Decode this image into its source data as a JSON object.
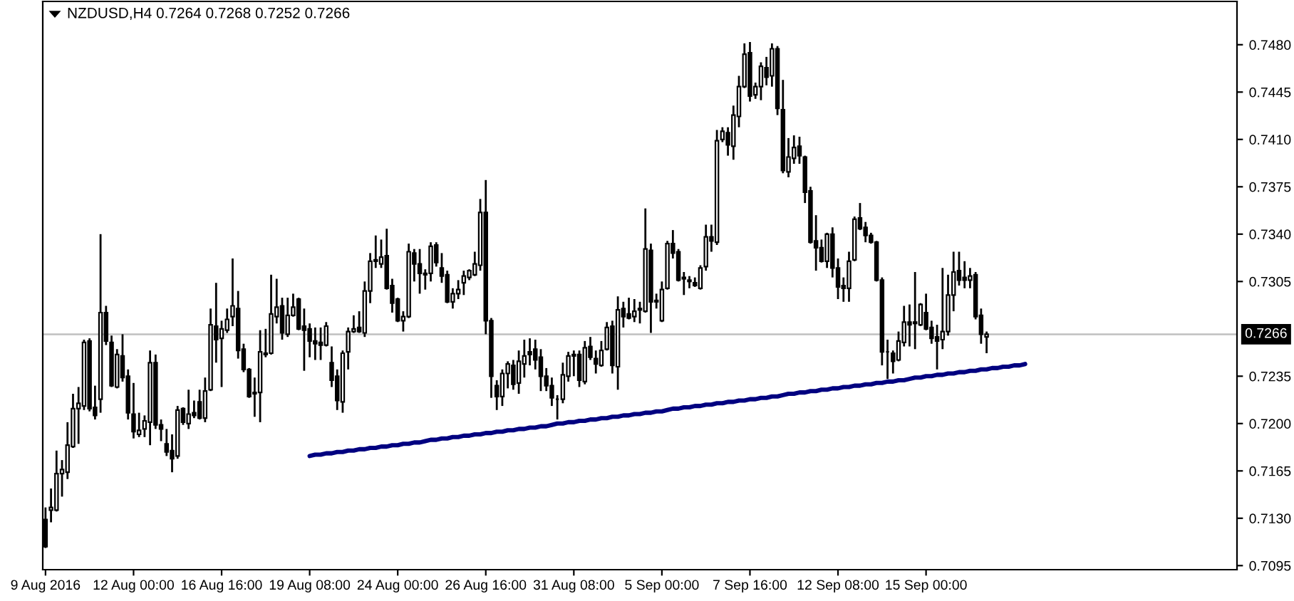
{
  "chart_data": {
    "type": "candlestick",
    "title": "NZDUSD,H4 0.7264 0.7268 0.7252 0.7266",
    "color": "#000000",
    "categories": [
      "9 Aug 2016",
      null,
      null,
      null,
      null,
      null,
      null,
      null,
      null,
      null,
      null,
      null,
      null,
      null,
      null,
      null,
      "12 Aug 00:00",
      null,
      null,
      null,
      null,
      null,
      null,
      null,
      null,
      null,
      null,
      null,
      null,
      null,
      null,
      null,
      "16 Aug 16:00",
      null,
      null,
      null,
      null,
      null,
      null,
      null,
      null,
      null,
      null,
      null,
      null,
      null,
      null,
      null,
      "19 Aug 08:00",
      null,
      null,
      null,
      null,
      null,
      null,
      null,
      null,
      null,
      null,
      null,
      null,
      null,
      null,
      null,
      "24 Aug 00:00",
      null,
      null,
      null,
      null,
      null,
      null,
      null,
      null,
      null,
      null,
      null,
      null,
      null,
      null,
      null,
      "26 Aug 16:00",
      null,
      null,
      null,
      null,
      null,
      null,
      null,
      null,
      null,
      null,
      null,
      null,
      null,
      null,
      null,
      "31 Aug 08:00",
      null,
      null,
      null,
      null,
      null,
      null,
      null,
      null,
      null,
      null,
      null,
      null,
      null,
      null,
      null,
      "5 Sep 00:00",
      null,
      null,
      null,
      null,
      null,
      null,
      null,
      null,
      null,
      null,
      null,
      null,
      null,
      null,
      null,
      "7 Sep 16:00",
      null,
      null,
      null,
      null,
      null,
      null,
      null,
      null,
      null,
      null,
      null,
      null,
      null,
      null,
      null,
      "12 Sep 08:00",
      null,
      null,
      null,
      null,
      null,
      null,
      null,
      null,
      null,
      null,
      null,
      null,
      null,
      null,
      null,
      "15 Sep 00:00",
      null,
      null,
      null,
      null,
      null,
      null,
      null,
      null,
      null,
      null,
      null,
      null,
      null,
      null,
      null,
      null,
      null,
      null,
      null,
      null,
      null,
      null,
      null,
      null,
      null,
      null,
      null,
      null,
      null,
      null,
      null,
      null,
      null,
      null,
      null,
      null,
      null,
      null,
      null,
      null,
      null,
      null,
      null,
      null,
      null,
      null,
      null,
      null,
      null,
      null,
      null,
      null,
      null,
      null,
      null,
      null
    ],
    "ohlc": [
      [
        0.7129,
        0.7138,
        0.7108,
        0.7109
      ],
      [
        0.7136,
        0.7152,
        0.7127,
        0.7138
      ],
      [
        0.7136,
        0.718,
        0.7135,
        0.7163
      ],
      [
        0.7163,
        0.7173,
        0.7146,
        0.7166
      ],
      [
        0.7164,
        0.7201,
        0.7159,
        0.7184
      ],
      [
        0.7183,
        0.7222,
        0.7182,
        0.7211
      ],
      [
        0.7211,
        0.7227,
        0.7185,
        0.7215
      ],
      [
        0.7213,
        0.7262,
        0.721,
        0.726
      ],
      [
        0.7261,
        0.7263,
        0.7209,
        0.7211
      ],
      [
        0.7212,
        0.7228,
        0.7203,
        0.7206
      ],
      [
        0.7218,
        0.734,
        0.7208,
        0.7282
      ],
      [
        0.7282,
        0.7287,
        0.7258,
        0.7261
      ],
      [
        0.726,
        0.7265,
        0.7227,
        0.7228
      ],
      [
        0.7227,
        0.7255,
        0.7226,
        0.7251
      ],
      [
        0.725,
        0.7266,
        0.7231,
        0.7234
      ],
      [
        0.7235,
        0.724,
        0.7203,
        0.7208
      ],
      [
        0.7207,
        0.723,
        0.7189,
        0.7194
      ],
      [
        0.7192,
        0.7208,
        0.719,
        0.7195
      ],
      [
        0.7196,
        0.7206,
        0.719,
        0.7202
      ],
      [
        0.7201,
        0.7254,
        0.7184,
        0.7245
      ],
      [
        0.7245,
        0.7251,
        0.7196,
        0.7199
      ],
      [
        0.7199,
        0.7203,
        0.7187,
        0.7196
      ],
      [
        0.7185,
        0.7196,
        0.7176,
        0.7179
      ],
      [
        0.718,
        0.7192,
        0.7164,
        0.7174
      ],
      [
        0.7176,
        0.7213,
        0.7174,
        0.721
      ],
      [
        0.7211,
        0.7212,
        0.7199,
        0.7201
      ],
      [
        0.72,
        0.7225,
        0.7196,
        0.7207
      ],
      [
        0.7208,
        0.7217,
        0.7204,
        0.7206
      ],
      [
        0.7216,
        0.7225,
        0.7203,
        0.7204
      ],
      [
        0.7204,
        0.7234,
        0.7201,
        0.7224
      ],
      [
        0.7225,
        0.7285,
        0.7224,
        0.7273
      ],
      [
        0.7272,
        0.7304,
        0.7245,
        0.7262
      ],
      [
        0.7263,
        0.7276,
        0.7227,
        0.727
      ],
      [
        0.7269,
        0.7285,
        0.7267,
        0.7277
      ],
      [
        0.7279,
        0.7322,
        0.7272,
        0.7287
      ],
      [
        0.7285,
        0.7298,
        0.7248,
        0.7254
      ],
      [
        0.7255,
        0.7259,
        0.7238,
        0.724
      ],
      [
        0.724,
        0.7241,
        0.7219,
        0.722
      ],
      [
        0.7222,
        0.7234,
        0.7205,
        0.7223
      ],
      [
        0.7223,
        0.7269,
        0.7201,
        0.7253
      ],
      [
        0.7251,
        0.727,
        0.7249,
        0.7252
      ],
      [
        0.7252,
        0.731,
        0.7251,
        0.7281
      ],
      [
        0.7279,
        0.7307,
        0.7274,
        0.7286
      ],
      [
        0.7287,
        0.7293,
        0.7262,
        0.7267
      ],
      [
        0.7266,
        0.7293,
        0.7264,
        0.728
      ],
      [
        0.728,
        0.7296,
        0.7279,
        0.7286
      ],
      [
        0.7292,
        0.7293,
        0.7269,
        0.727
      ],
      [
        0.7272,
        0.7285,
        0.7239,
        0.7269
      ],
      [
        0.727,
        0.7274,
        0.7249,
        0.7261
      ],
      [
        0.7261,
        0.7271,
        0.7247,
        0.7259
      ],
      [
        0.726,
        0.7271,
        0.7247,
        0.7258
      ],
      [
        0.7258,
        0.7275,
        0.7257,
        0.7272
      ],
      [
        0.7245,
        0.7257,
        0.7227,
        0.7232
      ],
      [
        0.7235,
        0.724,
        0.721,
        0.7217
      ],
      [
        0.7216,
        0.7254,
        0.7208,
        0.7252
      ],
      [
        0.7253,
        0.7271,
        0.724,
        0.7268
      ],
      [
        0.7268,
        0.728,
        0.7267,
        0.727
      ],
      [
        0.7271,
        0.7283,
        0.7267,
        0.7268
      ],
      [
        0.7267,
        0.7305,
        0.7264,
        0.7298
      ],
      [
        0.7298,
        0.7326,
        0.7289,
        0.732
      ],
      [
        0.7321,
        0.7339,
        0.7315,
        0.732
      ],
      [
        0.7318,
        0.7336,
        0.7315,
        0.7323
      ],
      [
        0.7324,
        0.7344,
        0.7299,
        0.73
      ],
      [
        0.7302,
        0.7307,
        0.7282,
        0.7289
      ],
      [
        0.7292,
        0.7293,
        0.7275,
        0.7276
      ],
      [
        0.7276,
        0.7283,
        0.7268,
        0.7279
      ],
      [
        0.7279,
        0.7333,
        0.7278,
        0.7327
      ],
      [
        0.7326,
        0.7329,
        0.7305,
        0.7318
      ],
      [
        0.7318,
        0.7329,
        0.7296,
        0.7311
      ],
      [
        0.7311,
        0.7314,
        0.7299,
        0.731
      ],
      [
        0.7311,
        0.7334,
        0.7305,
        0.7331
      ],
      [
        0.7332,
        0.7334,
        0.7316,
        0.7319
      ],
      [
        0.7315,
        0.7326,
        0.7304,
        0.7309
      ],
      [
        0.731,
        0.7313,
        0.7289,
        0.729
      ],
      [
        0.729,
        0.73,
        0.7285,
        0.7296
      ],
      [
        0.7296,
        0.7306,
        0.7292,
        0.7299
      ],
      [
        0.7304,
        0.7313,
        0.7295,
        0.7309
      ],
      [
        0.7308,
        0.7314,
        0.7306,
        0.7313
      ],
      [
        0.731,
        0.7327,
        0.7309,
        0.7318
      ],
      [
        0.7317,
        0.7366,
        0.7313,
        0.7356
      ],
      [
        0.7356,
        0.738,
        0.7266,
        0.7276
      ],
      [
        0.7276,
        0.7278,
        0.7219,
        0.7235
      ],
      [
        0.7228,
        0.7232,
        0.721,
        0.722
      ],
      [
        0.722,
        0.724,
        0.7213,
        0.7237
      ],
      [
        0.7237,
        0.7246,
        0.7226,
        0.7244
      ],
      [
        0.7243,
        0.7247,
        0.7225,
        0.7229
      ],
      [
        0.723,
        0.7254,
        0.7222,
        0.7246
      ],
      [
        0.7244,
        0.7262,
        0.7234,
        0.725
      ],
      [
        0.7253,
        0.7263,
        0.7243,
        0.7251
      ],
      [
        0.7255,
        0.7262,
        0.724,
        0.7247
      ],
      [
        0.7249,
        0.7255,
        0.7224,
        0.7235
      ],
      [
        0.7235,
        0.7241,
        0.7224,
        0.7228
      ],
      [
        0.7228,
        0.7234,
        0.7213,
        0.7219
      ],
      [
        0.7218,
        0.7221,
        0.7203,
        0.7218
      ],
      [
        0.7218,
        0.7245,
        0.7215,
        0.7236
      ],
      [
        0.7235,
        0.7253,
        0.7231,
        0.725
      ],
      [
        0.725,
        0.7254,
        0.7235,
        0.7251
      ],
      [
        0.7251,
        0.7254,
        0.7227,
        0.7232
      ],
      [
        0.7231,
        0.7261,
        0.7229,
        0.7256
      ],
      [
        0.7257,
        0.7264,
        0.7247,
        0.7249
      ],
      [
        0.7248,
        0.7254,
        0.7237,
        0.7244
      ],
      [
        0.7243,
        0.7261,
        0.7242,
        0.7254
      ],
      [
        0.7255,
        0.7275,
        0.7254,
        0.7271
      ],
      [
        0.7272,
        0.7276,
        0.7237,
        0.7243
      ],
      [
        0.7242,
        0.7294,
        0.7225,
        0.7284
      ],
      [
        0.7285,
        0.729,
        0.7271,
        0.7279
      ],
      [
        0.7281,
        0.7293,
        0.7277,
        0.7278
      ],
      [
        0.7279,
        0.7292,
        0.7275,
        0.7283
      ],
      [
        0.7284,
        0.729,
        0.7274,
        0.7285
      ],
      [
        0.7283,
        0.7359,
        0.7282,
        0.7329
      ],
      [
        0.7328,
        0.7333,
        0.7267,
        0.729
      ],
      [
        0.7291,
        0.7296,
        0.7285,
        0.729
      ],
      [
        0.7276,
        0.7305,
        0.7275,
        0.7299
      ],
      [
        0.73,
        0.7335,
        0.7299,
        0.7333
      ],
      [
        0.7333,
        0.7343,
        0.7322,
        0.7326
      ],
      [
        0.7327,
        0.7329,
        0.7305,
        0.7306
      ],
      [
        0.7308,
        0.7312,
        0.7295,
        0.7307
      ],
      [
        0.7306,
        0.7309,
        0.73,
        0.7305
      ],
      [
        0.7304,
        0.7308,
        0.7301,
        0.7302
      ],
      [
        0.73,
        0.7317,
        0.7299,
        0.7315
      ],
      [
        0.7316,
        0.7347,
        0.7313,
        0.7338
      ],
      [
        0.7338,
        0.7347,
        0.7327,
        0.7335
      ],
      [
        0.7334,
        0.7417,
        0.7332,
        0.7409
      ],
      [
        0.741,
        0.7419,
        0.7408,
        0.7416
      ],
      [
        0.7415,
        0.7419,
        0.7398,
        0.7406
      ],
      [
        0.7405,
        0.7435,
        0.7395,
        0.7428
      ],
      [
        0.7427,
        0.7457,
        0.7419,
        0.7449
      ],
      [
        0.7449,
        0.7481,
        0.7448,
        0.7473
      ],
      [
        0.7474,
        0.7482,
        0.7438,
        0.7442
      ],
      [
        0.7443,
        0.7452,
        0.744,
        0.7449
      ],
      [
        0.7449,
        0.7467,
        0.7439,
        0.7464
      ],
      [
        0.7463,
        0.7471,
        0.745,
        0.7456
      ],
      [
        0.7457,
        0.7481,
        0.7449,
        0.7477
      ],
      [
        0.7477,
        0.7479,
        0.7428,
        0.7433
      ],
      [
        0.7432,
        0.7454,
        0.7385,
        0.7387
      ],
      [
        0.7386,
        0.7411,
        0.7382,
        0.7397
      ],
      [
        0.7396,
        0.7413,
        0.7392,
        0.7404
      ],
      [
        0.7405,
        0.7412,
        0.7392,
        0.7398
      ],
      [
        0.7397,
        0.7398,
        0.7363,
        0.7371
      ],
      [
        0.7372,
        0.7375,
        0.7333,
        0.7334
      ],
      [
        0.7335,
        0.7354,
        0.7313,
        0.733
      ],
      [
        0.733,
        0.7336,
        0.7319,
        0.732
      ],
      [
        0.732,
        0.7341,
        0.7315,
        0.734
      ],
      [
        0.734,
        0.7345,
        0.7308,
        0.7315
      ],
      [
        0.7315,
        0.7322,
        0.7292,
        0.7301
      ],
      [
        0.7302,
        0.7308,
        0.729,
        0.73
      ],
      [
        0.73,
        0.7327,
        0.729,
        0.732
      ],
      [
        0.7321,
        0.7353,
        0.732,
        0.7351
      ],
      [
        0.7352,
        0.7363,
        0.7343,
        0.7344
      ],
      [
        0.7345,
        0.7349,
        0.7334,
        0.7339
      ],
      [
        0.7339,
        0.7341,
        0.7333,
        0.7334
      ],
      [
        0.7334,
        0.7335,
        0.7305,
        0.7306
      ],
      [
        0.7306,
        0.7308,
        0.7243,
        0.7253
      ],
      [
        0.7253,
        0.7262,
        0.7233,
        0.7253
      ],
      [
        0.7252,
        0.7254,
        0.7237,
        0.7246
      ],
      [
        0.7247,
        0.7268,
        0.7246,
        0.7261
      ],
      [
        0.726,
        0.7287,
        0.7257,
        0.7275
      ],
      [
        0.7275,
        0.7288,
        0.7257,
        0.7273
      ],
      [
        0.7274,
        0.7312,
        0.7255,
        0.7275
      ],
      [
        0.7273,
        0.7289,
        0.7272,
        0.7288
      ],
      [
        0.7282,
        0.7296,
        0.7269,
        0.727
      ],
      [
        0.7271,
        0.7276,
        0.7259,
        0.7263
      ],
      [
        0.7264,
        0.7273,
        0.724,
        0.7261
      ],
      [
        0.7262,
        0.7315,
        0.7255,
        0.7268
      ],
      [
        0.7268,
        0.731,
        0.7265,
        0.7295
      ],
      [
        0.7295,
        0.7327,
        0.7283,
        0.7312
      ],
      [
        0.7313,
        0.7327,
        0.7302,
        0.7306
      ],
      [
        0.7308,
        0.732,
        0.73,
        0.7306
      ],
      [
        0.7306,
        0.7315,
        0.73,
        0.7309
      ],
      [
        0.731,
        0.7312,
        0.7277,
        0.7279
      ],
      [
        0.728,
        0.7285,
        0.7259,
        0.7266
      ],
      [
        0.7264,
        0.7268,
        0.7252,
        0.7266
      ],
      null,
      null,
      null,
      null,
      null,
      null,
      null,
      null,
      null,
      null,
      null,
      null,
      null,
      null,
      null,
      null,
      null,
      null,
      null,
      null,
      null,
      null,
      null,
      null,
      null,
      null,
      null,
      null,
      null,
      null,
      null,
      null,
      null,
      null,
      null,
      null,
      null,
      null,
      null,
      null,
      null,
      null,
      null,
      null,
      null
    ],
    "series": [
      {
        "type": "line",
        "color": "#000080",
        "line_style": "solid",
        "values": [
          null,
          null,
          null,
          null,
          null,
          null,
          null,
          null,
          null,
          null,
          null,
          null,
          null,
          null,
          null,
          null,
          null,
          null,
          null,
          null,
          null,
          null,
          null,
          null,
          null,
          null,
          null,
          null,
          null,
          null,
          null,
          null,
          null,
          null,
          null,
          null,
          null,
          null,
          null,
          null,
          null,
          null,
          null,
          null,
          null,
          null,
          null,
          null,
          0.7176,
          0.7177,
          0.7177,
          0.7178,
          0.7178,
          0.7179,
          0.7179,
          0.718,
          0.718,
          0.7181,
          0.7181,
          0.7182,
          0.7182,
          0.7183,
          0.7183,
          0.7184,
          0.7184,
          0.7185,
          0.7185,
          0.7186,
          0.7186,
          0.7187,
          0.7188,
          0.7188,
          0.7189,
          0.7189,
          0.719,
          0.719,
          0.7191,
          0.7191,
          0.7192,
          0.7192,
          0.7193,
          0.7193,
          0.7194,
          0.7194,
          0.7195,
          0.7195,
          0.7196,
          0.7196,
          0.7197,
          0.7197,
          0.7198,
          0.7198,
          0.7199,
          0.72,
          0.72,
          0.7201,
          0.7201,
          0.7202,
          0.7202,
          0.7203,
          0.7203,
          0.7204,
          0.7204,
          0.7205,
          0.7205,
          0.7206,
          0.7206,
          0.7207,
          0.7207,
          0.7208,
          0.7208,
          0.7209,
          0.7209,
          0.721,
          0.7211,
          0.7211,
          0.7212,
          0.7212,
          0.7213,
          0.7213,
          0.7214,
          0.7214,
          0.7215,
          0.7215,
          0.7216,
          0.7216,
          0.7217,
          0.7217,
          0.7218,
          0.7218,
          0.7219,
          0.7219,
          0.722,
          0.722,
          0.7221,
          0.7222,
          0.7222,
          0.7223,
          0.7223,
          0.7224,
          0.7224,
          0.7225,
          0.7225,
          0.7226,
          0.7226,
          0.7227,
          0.7227,
          0.7228,
          0.7228,
          0.7229,
          0.7229,
          0.723,
          0.723,
          0.7231,
          0.7231,
          0.7232,
          0.7232,
          0.7233,
          0.7234,
          0.7234,
          0.7235,
          0.7235,
          0.7236,
          0.7236,
          0.7237,
          0.7237,
          0.7238,
          0.7238,
          0.7239,
          0.7239,
          0.724,
          0.724,
          0.7241,
          0.7241,
          0.7242,
          0.7242,
          0.7243,
          0.7243,
          0.7244,
          null,
          null,
          null,
          null,
          null,
          null,
          null,
          null,
          null,
          null,
          null,
          null,
          null,
          null,
          null,
          null,
          null,
          null,
          null,
          null,
          null,
          null,
          null,
          null,
          null,
          null,
          null,
          null,
          null,
          null,
          null,
          null,
          null,
          null,
          null,
          null,
          null,
          null
        ]
      }
    ],
    "ylim": [
      0.7092,
      0.7512
    ],
    "yticks": [
      0.7095,
      {
        "value": 0.713,
        "label": "0.7130"
      },
      0.7165,
      {
        "value": 0.72,
        "label": "0.7200"
      },
      0.7235,
      0.7305,
      {
        "value": 0.734,
        "label": "0.7340"
      },
      0.7375,
      {
        "value": 0.741,
        "label": "0.7410"
      },
      0.7445,
      {
        "value": 0.748,
        "label": "0.7480"
      }
    ],
    "ref_lines": [
      {
        "axis": "y",
        "value": 0.7266,
        "label": "0.7266",
        "color": "#c0c0c0"
      }
    ]
  }
}
